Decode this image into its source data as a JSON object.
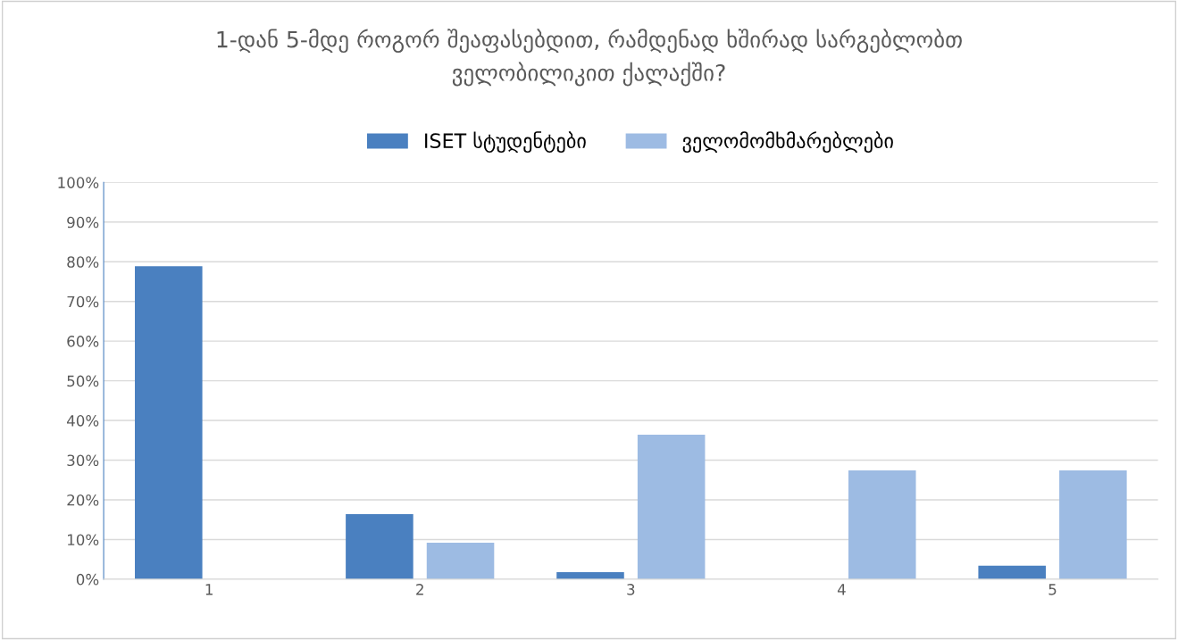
{
  "chart_data": {
    "type": "bar",
    "title": "1-დან 5-მდე როგორ შეაფასებდით, რამდენად ხშირად სარგებლობთ\nველობილიკით ქალაქში?",
    "categories": [
      "1",
      "2",
      "3",
      "4",
      "5"
    ],
    "series": [
      {
        "name": "ISET სტუდენტები",
        "color": "#4a80c0",
        "values": [
          78.9,
          16.4,
          1.8,
          0,
          3.4
        ]
      },
      {
        "name": "ველომომხმარებლები",
        "color": "#9dbbe3",
        "values": [
          0,
          9.2,
          36.4,
          27.4,
          27.4
        ]
      }
    ],
    "ylim": [
      0,
      100
    ],
    "yticks": [
      {
        "value": 0,
        "label": "0%"
      },
      {
        "value": 10,
        "label": "10%"
      },
      {
        "value": 20,
        "label": "20%"
      },
      {
        "value": 30,
        "label": "30%"
      },
      {
        "value": 40,
        "label": "40%"
      },
      {
        "value": 50,
        "label": "50%"
      },
      {
        "value": 60,
        "label": "60%"
      },
      {
        "value": 70,
        "label": "70%"
      },
      {
        "value": 80,
        "label": "80%"
      },
      {
        "value": 90,
        "label": "90%"
      },
      {
        "value": 100,
        "label": "100%"
      }
    ],
    "grid": "y",
    "legend": "top"
  }
}
